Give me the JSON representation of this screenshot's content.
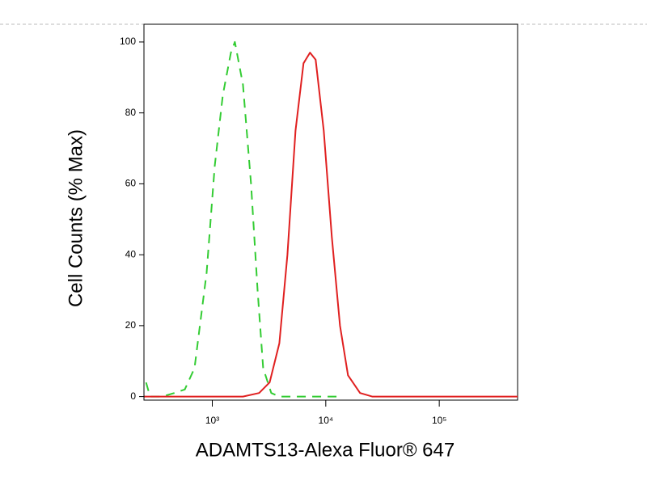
{
  "chart_data": {
    "type": "line",
    "xlabel": "ADAMTS13-Alexa Fluor® 647",
    "ylabel": "Cell Counts (% Max)",
    "xscale": "log",
    "xlim": [
      250,
      490000
    ],
    "ylim": [
      -1,
      105
    ],
    "xticks": [
      {
        "value": 1000,
        "label": "10³"
      },
      {
        "value": 10000,
        "label": "10⁴"
      },
      {
        "value": 100000,
        "label": "10⁵"
      }
    ],
    "yticks": [
      0,
      20,
      40,
      60,
      80,
      100
    ],
    "series": [
      {
        "color": "#33cc33",
        "dashed": true,
        "x": [
          261,
          283,
          362,
          463,
          573,
          697,
          892,
          1050,
          1238,
          1458,
          1582,
          1864,
          2196,
          2505,
          2808,
          3309,
          3900,
          13340
        ],
        "values": [
          4,
          0,
          0,
          1,
          2,
          8,
          35,
          65,
          85,
          97,
          100,
          88,
          60,
          30,
          8,
          1,
          0,
          0
        ]
      },
      {
        "color": "#e02020",
        "dashed": false,
        "x": [
          252,
          1864,
          2588,
          3200,
          3900,
          4590,
          5410,
          6370,
          7260,
          8150,
          9600,
          11300,
          13340,
          15700,
          20050,
          25640,
          489800
        ],
        "values": [
          0,
          0,
          1,
          4,
          15,
          40,
          75,
          94,
          97,
          95,
          75,
          45,
          20,
          6,
          1,
          0,
          0
        ]
      }
    ]
  }
}
